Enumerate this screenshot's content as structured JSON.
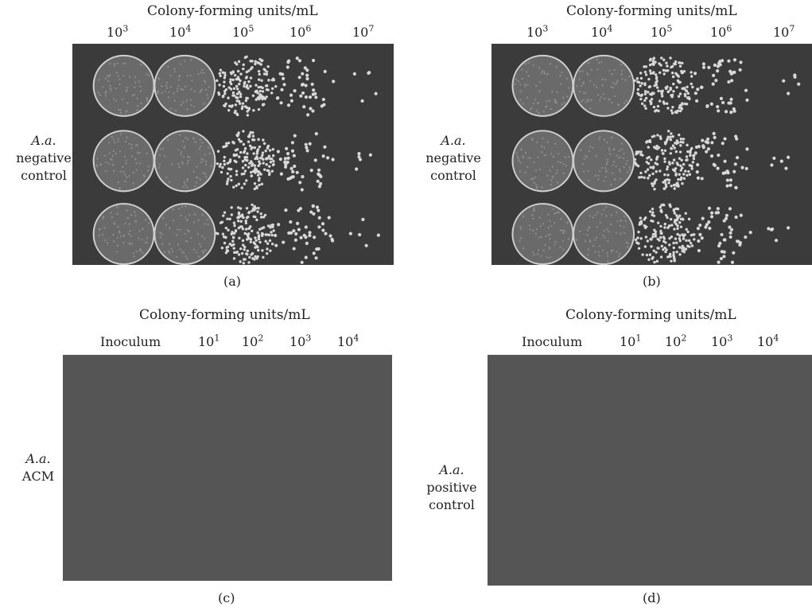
{
  "panels": [
    {
      "id": "a",
      "caption": "(a)",
      "header": "Colony-forming units/mL",
      "columns": [
        {
          "base": "10",
          "exp": "3"
        },
        {
          "base": "10",
          "exp": "4"
        },
        {
          "base": "10",
          "exp": "5"
        },
        {
          "base": "10",
          "exp": "6"
        },
        {
          "base": "10",
          "exp": "7"
        }
      ],
      "row_label": {
        "organism": "A.a.",
        "line2": "negative",
        "line3": "control"
      }
    },
    {
      "id": "b",
      "caption": "(b)",
      "header": "Colony-forming units/mL",
      "columns": [
        {
          "base": "10",
          "exp": "3"
        },
        {
          "base": "10",
          "exp": "4"
        },
        {
          "base": "10",
          "exp": "5"
        },
        {
          "base": "10",
          "exp": "6"
        },
        {
          "base": "10",
          "exp": "7"
        }
      ],
      "row_label": {
        "organism": "A.a.",
        "line2": "negative",
        "line3": "control"
      }
    },
    {
      "id": "c",
      "caption": "(c)",
      "header": "Colony-forming units/mL",
      "inoculum_label": "Inoculum",
      "columns": [
        {
          "base": "10",
          "exp": "1"
        },
        {
          "base": "10",
          "exp": "2"
        },
        {
          "base": "10",
          "exp": "3"
        },
        {
          "base": "10",
          "exp": "4"
        }
      ],
      "row_label": {
        "organism": "A.a.",
        "line2": "ACM",
        "line3": ""
      }
    },
    {
      "id": "d",
      "caption": "(d)",
      "header": "Colony-forming units/mL",
      "inoculum_label": "Inoculum",
      "columns": [
        {
          "base": "10",
          "exp": "1"
        },
        {
          "base": "10",
          "exp": "2"
        },
        {
          "base": "10",
          "exp": "3"
        },
        {
          "base": "10",
          "exp": "4"
        }
      ],
      "row_label": {
        "organism": "A.a.",
        "line2": "positive",
        "line3": "control"
      }
    }
  ],
  "colors": {
    "plate_dark": "#3b3b3b",
    "plate_blank": "#555555",
    "colony": "#d8d8d8"
  }
}
